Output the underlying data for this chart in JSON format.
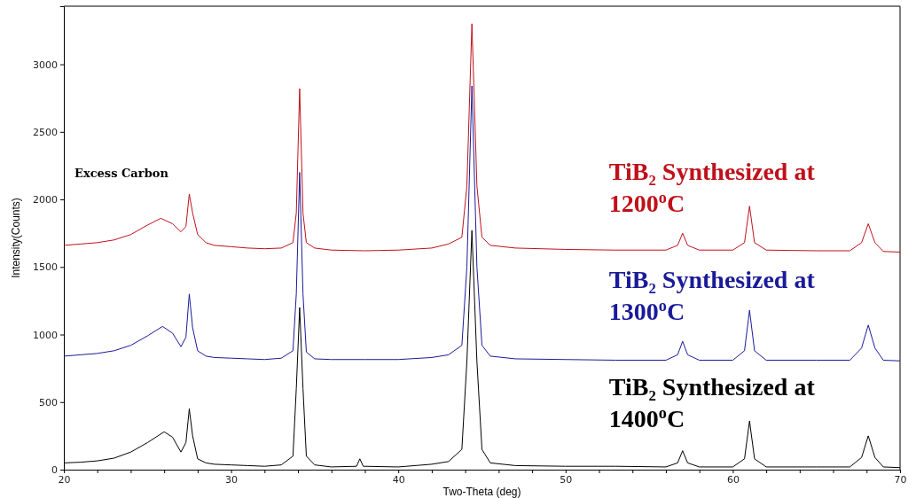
{
  "chart_data": {
    "type": "line",
    "xlabel": "Two-Theta (deg)",
    "ylabel": "Intensity(Counts)",
    "annotations": [
      "Excess Carbon"
    ],
    "xlim": [
      20,
      70
    ],
    "ylim": [
      0,
      3430
    ],
    "xticks": [
      20,
      {
        "value": 22,
        "label": null
      },
      {
        "value": 24,
        "label": null
      },
      {
        "value": 26,
        "label": null
      },
      {
        "value": 28,
        "label": null
      },
      30,
      {
        "value": 32,
        "label": null
      },
      {
        "value": 34,
        "label": null
      },
      {
        "value": 36,
        "label": null
      },
      {
        "value": 38,
        "label": null
      },
      40,
      {
        "value": 42,
        "label": null
      },
      {
        "value": 44,
        "label": null
      },
      {
        "value": 46,
        "label": null
      },
      {
        "value": 48,
        "label": null
      },
      50,
      {
        "value": 52,
        "label": null
      },
      {
        "value": 54,
        "label": null
      },
      {
        "value": 56,
        "label": null
      },
      {
        "value": 58,
        "label": null
      },
      60,
      {
        "value": 62,
        "label": null
      },
      {
        "value": 64,
        "label": null
      },
      {
        "value": 66,
        "label": null
      },
      {
        "value": 68,
        "label": null
      },
      70
    ],
    "yticks": [
      0,
      500,
      1000,
      1500,
      2000,
      2500,
      3000
    ],
    "grid": false,
    "marker": "none",
    "line_style": "solid",
    "series": [
      {
        "name": "TiB₂ Synthesized at 1200$^{o}$C",
        "color": "#c0101a",
        "x": [
          20,
          21,
          22,
          23,
          24,
          25,
          25.8,
          26.5,
          27,
          27.3,
          27.5,
          27.7,
          28,
          28.5,
          29,
          30,
          31,
          32,
          33,
          33.7,
          33.9,
          34.1,
          34.3,
          34.5,
          35,
          36,
          38,
          40,
          42,
          43,
          43.8,
          44.1,
          44.4,
          44.7,
          45,
          45.5,
          47,
          50,
          53,
          56,
          56.7,
          57,
          57.3,
          58,
          60,
          60.7,
          61,
          61.3,
          62,
          65,
          67,
          67.7,
          68.1,
          68.5,
          69,
          70
        ],
        "values": [
          1660,
          1670,
          1680,
          1700,
          1740,
          1810,
          1860,
          1820,
          1760,
          1800,
          2040,
          1900,
          1740,
          1680,
          1660,
          1650,
          1640,
          1635,
          1640,
          1680,
          1900,
          2820,
          1900,
          1680,
          1640,
          1625,
          1620,
          1625,
          1640,
          1670,
          1720,
          2100,
          3300,
          2100,
          1720,
          1660,
          1640,
          1630,
          1625,
          1625,
          1660,
          1750,
          1660,
          1625,
          1625,
          1680,
          1950,
          1680,
          1625,
          1620,
          1620,
          1680,
          1820,
          1680,
          1615,
          1610
        ]
      },
      {
        "name": "TiB₂ Synthesized at 1300$^{o}$C",
        "color": "#1a1a9a",
        "x": [
          20,
          21,
          22,
          23,
          24,
          25,
          25.9,
          26.5,
          27,
          27.3,
          27.5,
          27.7,
          28,
          28.5,
          29,
          30,
          31,
          32,
          33,
          33.7,
          33.9,
          34.1,
          34.3,
          34.5,
          35,
          36,
          38,
          40,
          42,
          43,
          43.8,
          44.1,
          44.4,
          44.7,
          45,
          45.5,
          47,
          50,
          53,
          56,
          56.7,
          57,
          57.3,
          58,
          60,
          60.7,
          61,
          61.3,
          62,
          65,
          67,
          67.7,
          68.1,
          68.5,
          69,
          70
        ],
        "values": [
          840,
          850,
          860,
          880,
          920,
          990,
          1060,
          1010,
          910,
          980,
          1300,
          1050,
          880,
          840,
          830,
          825,
          820,
          815,
          825,
          880,
          1300,
          2200,
          1300,
          870,
          820,
          815,
          815,
          815,
          830,
          850,
          920,
          1500,
          2840,
          1500,
          920,
          840,
          820,
          815,
          810,
          810,
          850,
          950,
          850,
          810,
          810,
          880,
          1180,
          880,
          810,
          810,
          810,
          900,
          1070,
          900,
          810,
          805
        ]
      },
      {
        "name": "TiB₂ Synthesized at 1400$^{o}$C",
        "color": "#000000",
        "x": [
          20,
          21,
          22,
          23,
          24,
          25,
          26,
          26.5,
          27,
          27.3,
          27.5,
          27.7,
          28,
          28.5,
          29,
          30,
          31,
          32,
          33,
          33.7,
          33.9,
          34.1,
          34.3,
          34.5,
          35,
          36,
          37.5,
          37.7,
          37.9,
          40,
          42,
          43,
          43.8,
          44.1,
          44.4,
          44.7,
          45,
          45.5,
          47,
          50,
          53,
          56,
          56.7,
          57,
          57.3,
          58,
          60,
          60.7,
          61,
          61.3,
          62,
          65,
          67,
          67.7,
          68.1,
          68.5,
          69,
          70
        ],
        "values": [
          50,
          55,
          65,
          85,
          130,
          200,
          280,
          240,
          130,
          200,
          450,
          250,
          80,
          50,
          40,
          35,
          30,
          25,
          35,
          100,
          600,
          1200,
          600,
          100,
          35,
          20,
          25,
          80,
          25,
          20,
          40,
          60,
          150,
          800,
          1770,
          800,
          150,
          50,
          30,
          25,
          25,
          20,
          50,
          140,
          50,
          20,
          20,
          80,
          360,
          80,
          20,
          20,
          20,
          90,
          250,
          90,
          20,
          15
        ]
      }
    ]
  }
}
